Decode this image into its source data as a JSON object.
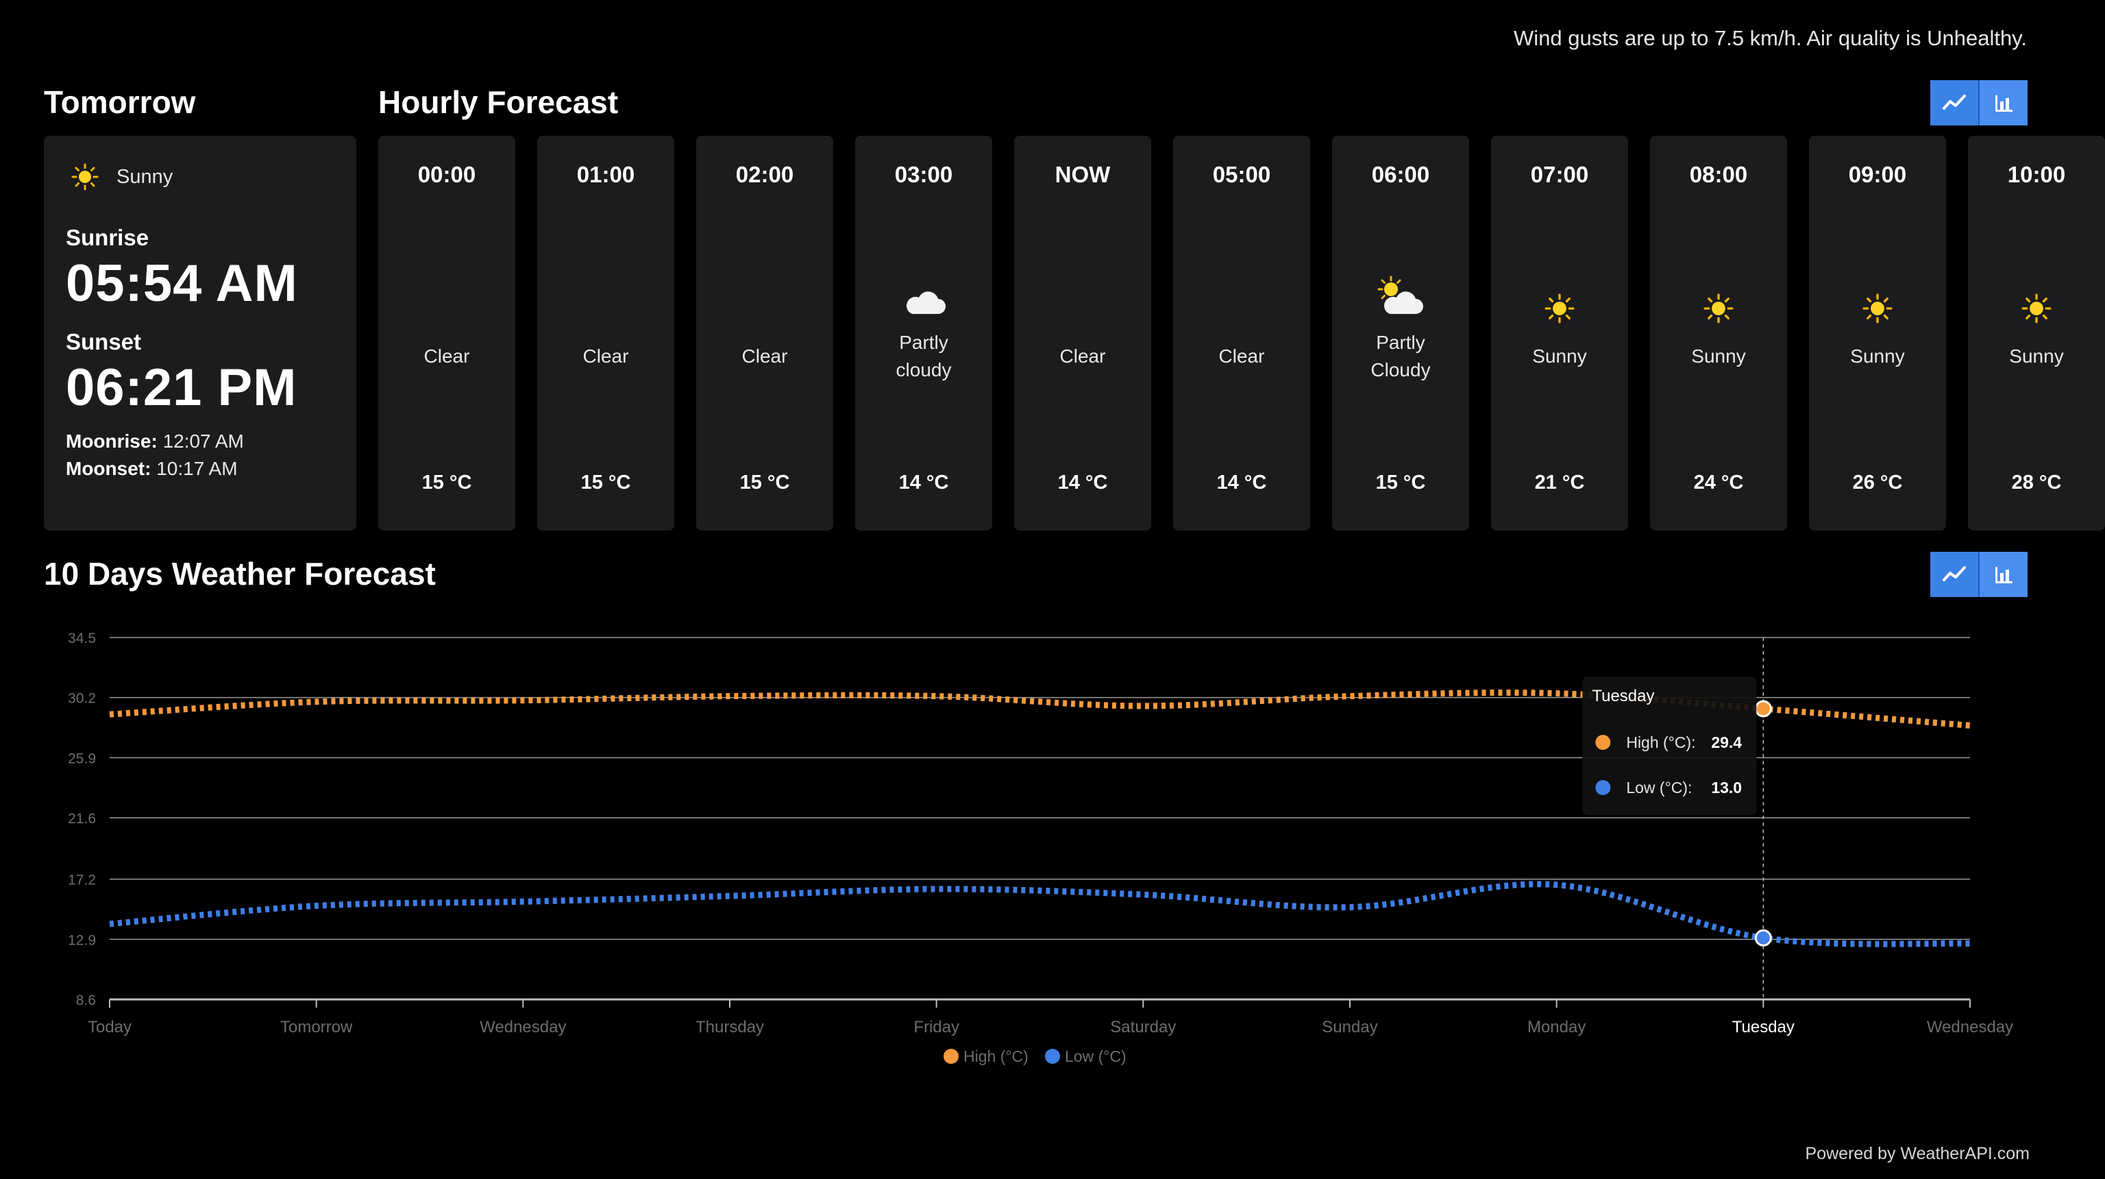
{
  "top_message": "Wind gusts are up to 7.5 km/h. Air quality is Unhealthy.",
  "tomorrow": {
    "title": "Tomorrow",
    "condition": "Sunny",
    "condition_icon": "sun-icon",
    "sunrise_label": "Sunrise",
    "sunrise": "05:54 AM",
    "sunset_label": "Sunset",
    "sunset": "06:21 PM",
    "moonrise_label": "Moonrise:",
    "moonrise": "12:07 AM",
    "moonset_label": "Moonset:",
    "moonset": "10:17 AM"
  },
  "hourly": {
    "title": "Hourly Forecast",
    "items": [
      {
        "time": "00:00",
        "icon": "moon-icon",
        "condition": "Clear",
        "temp": "15 °C"
      },
      {
        "time": "01:00",
        "icon": "moon-icon",
        "condition": "Clear",
        "temp": "15 °C"
      },
      {
        "time": "02:00",
        "icon": "moon-icon",
        "condition": "Clear",
        "temp": "15 °C"
      },
      {
        "time": "03:00",
        "icon": "moon-cloud-icon",
        "condition": "Partly cloudy",
        "temp": "14 °C"
      },
      {
        "time": "NOW",
        "icon": "moon-icon",
        "condition": "Clear",
        "temp": "14 °C"
      },
      {
        "time": "05:00",
        "icon": "moon-icon",
        "condition": "Clear",
        "temp": "14 °C"
      },
      {
        "time": "06:00",
        "icon": "sun-cloud-icon",
        "condition": "Partly Cloudy",
        "temp": "15 °C"
      },
      {
        "time": "07:00",
        "icon": "sun-icon",
        "condition": "Sunny",
        "temp": "21 °C"
      },
      {
        "time": "08:00",
        "icon": "sun-icon",
        "condition": "Sunny",
        "temp": "24 °C"
      },
      {
        "time": "09:00",
        "icon": "sun-icon",
        "condition": "Sunny",
        "temp": "26 °C"
      },
      {
        "time": "10:00",
        "icon": "sun-icon",
        "condition": "Sunny",
        "temp": "28 °C"
      }
    ]
  },
  "toggle_icons": [
    "line-chart-icon",
    "bar-chart-icon"
  ],
  "forecast": {
    "title": "10 Days Weather Forecast"
  },
  "colors": {
    "high": "#f59a3c",
    "low": "#3f7fe6",
    "accent": "#3b82e6",
    "card": "#1c1c1e"
  },
  "chart_data": {
    "type": "line",
    "categories": [
      "Today",
      "Tomorrow",
      "Wednesday",
      "Thursday",
      "Friday",
      "Saturday",
      "Sunday",
      "Monday",
      "Tuesday",
      "Wednesday"
    ],
    "series": [
      {
        "name": "High (°C)",
        "values": [
          29.0,
          29.9,
          30.0,
          30.3,
          30.3,
          29.6,
          30.3,
          30.5,
          29.4,
          28.2
        ]
      },
      {
        "name": "Low (°C)",
        "values": [
          14.0,
          15.3,
          15.6,
          16.0,
          16.5,
          16.1,
          15.2,
          16.8,
          13.0,
          12.6
        ]
      }
    ],
    "yticks": [
      "34.5",
      "30.2",
      "25.9",
      "21.6",
      "17.2",
      "12.9",
      "8.6"
    ],
    "ylim": [
      8.6,
      34.5
    ],
    "grid": true,
    "legend": "bottom",
    "tooltip": {
      "title": "Tuesday",
      "rows": [
        {
          "label": "High (°C):",
          "value": "29.4"
        },
        {
          "label": "Low (°C):",
          "value": "13.0"
        }
      ]
    }
  },
  "powered_by": "Powered by WeatherAPI.com"
}
